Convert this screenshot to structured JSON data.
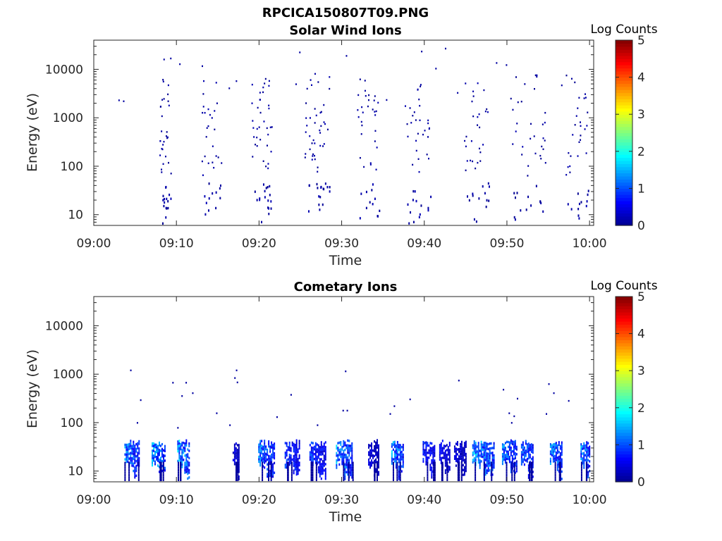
{
  "figure_title": "RPCICA150807T09.PNG",
  "colors": {
    "colormap": [
      "#00008f",
      "#0000ff",
      "#0080ff",
      "#00ffff",
      "#80ff80",
      "#ffff00",
      "#ff8000",
      "#ff0000",
      "#800000"
    ],
    "axis": "#262626",
    "background": "#ffffff"
  },
  "chart_data": [
    {
      "type": "heatmap",
      "title": "Solar Wind Ions",
      "xlabel": "Time",
      "ylabel": "Energy (eV)",
      "x_ticks": [
        "09:00",
        "09:10",
        "09:20",
        "09:30",
        "09:40",
        "09:50",
        "10:00"
      ],
      "xlim_minutes": [
        0,
        60.5
      ],
      "y_scale": "log",
      "ylim": [
        6,
        40000
      ],
      "y_ticks": [
        {
          "value": 10,
          "label": "10"
        },
        {
          "value": 100,
          "label": "100"
        },
        {
          "value": 1000,
          "label": "1000"
        },
        {
          "value": 10000,
          "label": "10000"
        }
      ],
      "colorbar": {
        "title": "Log Counts",
        "range": [
          0,
          5
        ],
        "ticks": [
          "0",
          "1",
          "2",
          "3",
          "4",
          "5"
        ]
      },
      "bursts": [
        {
          "t_min": 7.9,
          "t_max": 9.3,
          "e_min": 60,
          "e_max": 6000,
          "n_hi": 30,
          "n_lo": 16
        },
        {
          "t_min": 13.0,
          "t_max": 15.4,
          "e_min": 60,
          "e_max": 6000,
          "n_hi": 25,
          "n_lo": 12
        },
        {
          "t_min": 19.0,
          "t_max": 21.5,
          "e_min": 60,
          "e_max": 8000,
          "n_hi": 35,
          "n_lo": 18
        },
        {
          "t_min": 25.5,
          "t_max": 28.5,
          "e_min": 60,
          "e_max": 7000,
          "n_hi": 40,
          "n_lo": 18
        },
        {
          "t_min": 31.8,
          "t_max": 34.5,
          "e_min": 60,
          "e_max": 6000,
          "n_hi": 30,
          "n_lo": 12
        },
        {
          "t_min": 37.5,
          "t_max": 40.8,
          "e_min": 60,
          "e_max": 8000,
          "n_hi": 30,
          "n_lo": 14
        },
        {
          "t_min": 44.8,
          "t_max": 47.9,
          "e_min": 60,
          "e_max": 6000,
          "n_hi": 28,
          "n_lo": 14
        },
        {
          "t_min": 50.3,
          "t_max": 54.6,
          "e_min": 60,
          "e_max": 8000,
          "n_hi": 30,
          "n_lo": 14
        },
        {
          "t_min": 57.0,
          "t_max": 59.8,
          "e_min": 60,
          "e_max": 8000,
          "n_hi": 25,
          "n_lo": 12
        }
      ],
      "scatter_pixels": 24,
      "seed": 11,
      "value_range": [
        0,
        0.25
      ]
    },
    {
      "type": "heatmap",
      "title": "Cometary Ions",
      "xlabel": "Time",
      "ylabel": "Energy (eV)",
      "x_ticks": [
        "09:00",
        "09:10",
        "09:20",
        "09:30",
        "09:40",
        "09:50",
        "10:00"
      ],
      "xlim_minutes": [
        0,
        60.5
      ],
      "y_scale": "log",
      "ylim": [
        6,
        40000
      ],
      "y_ticks": [
        {
          "value": 10,
          "label": "10"
        },
        {
          "value": 100,
          "label": "100"
        },
        {
          "value": 1000,
          "label": "1000"
        },
        {
          "value": 10000,
          "label": "10000"
        }
      ],
      "colorbar": {
        "title": "Log Counts",
        "range": [
          0,
          5
        ],
        "ticks": [
          "0",
          "1",
          "2",
          "3",
          "4",
          "5"
        ]
      },
      "bands": [
        {
          "t_min": 3.7,
          "t_max": 5.4,
          "peak": 1.7
        },
        {
          "t_min": 7.0,
          "t_max": 8.6,
          "peak": 1.9
        },
        {
          "t_min": 10.1,
          "t_max": 11.6,
          "peak": 2.0
        },
        {
          "t_min": 16.8,
          "t_max": 17.6,
          "peak": 0.6
        },
        {
          "t_min": 19.9,
          "t_max": 21.9,
          "peak": 1.6
        },
        {
          "t_min": 23.1,
          "t_max": 24.9,
          "peak": 1.2
        },
        {
          "t_min": 26.1,
          "t_max": 28.1,
          "peak": 1.2
        },
        {
          "t_min": 29.3,
          "t_max": 31.3,
          "peak": 1.8
        },
        {
          "t_min": 33.2,
          "t_max": 34.4,
          "peak": 0.6
        },
        {
          "t_min": 36.0,
          "t_max": 37.4,
          "peak": 1.8
        },
        {
          "t_min": 39.8,
          "t_max": 41.3,
          "peak": 1.1
        },
        {
          "t_min": 41.8,
          "t_max": 43.1,
          "peak": 0.8
        },
        {
          "t_min": 43.6,
          "t_max": 45.0,
          "peak": 0.6
        },
        {
          "t_min": 45.8,
          "t_max": 48.4,
          "peak": 1.9
        },
        {
          "t_min": 49.4,
          "t_max": 51.2,
          "peak": 1.6
        },
        {
          "t_min": 51.7,
          "t_max": 53.2,
          "peak": 1.5
        },
        {
          "t_min": 55.2,
          "t_max": 56.7,
          "peak": 1.7
        },
        {
          "t_min": 58.9,
          "t_max": 60.0,
          "peak": 1.7
        }
      ],
      "scatter_points": [
        {
          "t": 4.4,
          "e": 1150
        },
        {
          "t": 5.2,
          "e": 95
        },
        {
          "t": 5.6,
          "e": 280
        },
        {
          "t": 9.5,
          "e": 640
        },
        {
          "t": 10.1,
          "e": 75
        },
        {
          "t": 10.6,
          "e": 340
        },
        {
          "t": 11.1,
          "e": 640
        },
        {
          "t": 11.9,
          "e": 390
        },
        {
          "t": 14.8,
          "e": 150
        },
        {
          "t": 16.4,
          "e": 85
        },
        {
          "t": 17.0,
          "e": 800
        },
        {
          "t": 17.2,
          "e": 1150
        },
        {
          "t": 17.3,
          "e": 650
        },
        {
          "t": 22.1,
          "e": 125
        },
        {
          "t": 23.8,
          "e": 360
        },
        {
          "t": 27.0,
          "e": 85
        },
        {
          "t": 30.1,
          "e": 170
        },
        {
          "t": 30.4,
          "e": 1100
        },
        {
          "t": 30.6,
          "e": 170
        },
        {
          "t": 35.8,
          "e": 145
        },
        {
          "t": 36.3,
          "e": 210
        },
        {
          "t": 38.2,
          "e": 290
        },
        {
          "t": 44.1,
          "e": 710
        },
        {
          "t": 49.5,
          "e": 460
        },
        {
          "t": 50.2,
          "e": 150
        },
        {
          "t": 50.5,
          "e": 95
        },
        {
          "t": 50.8,
          "e": 130
        },
        {
          "t": 51.2,
          "e": 300
        },
        {
          "t": 54.7,
          "e": 145
        },
        {
          "t": 55.0,
          "e": 600
        },
        {
          "t": 55.6,
          "e": 390
        },
        {
          "t": 57.4,
          "e": 270
        }
      ],
      "seed": 7
    }
  ]
}
